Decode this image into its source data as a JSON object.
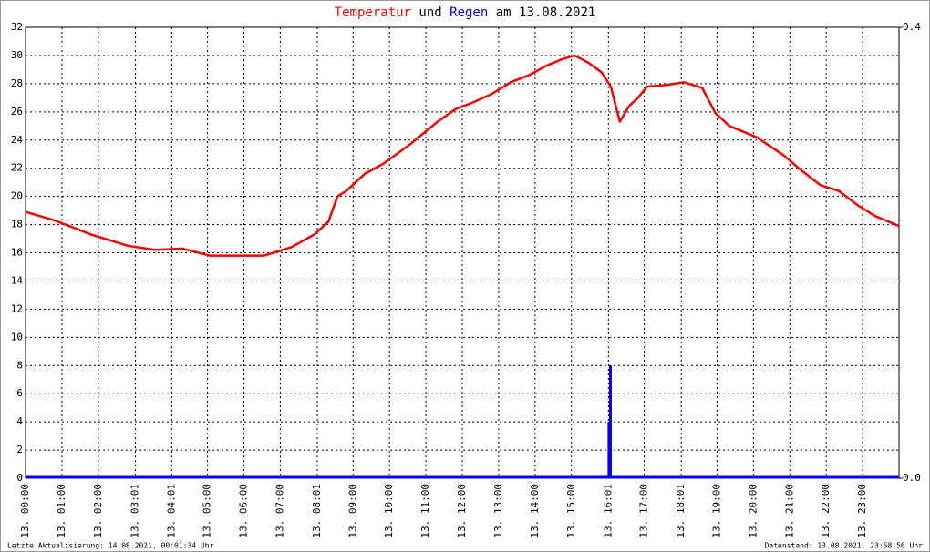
{
  "chart_data": {
    "type": "line",
    "title_connector": "und",
    "title_suffix": "am 13.08.2021",
    "xlim": [
      0,
      24
    ],
    "xticks": [
      {
        "value": 0,
        "label": "13. 00:00"
      },
      {
        "value": 1,
        "label": "13. 01:00"
      },
      {
        "value": 2,
        "label": "13. 02:00"
      },
      {
        "value": 3.017,
        "label": "13. 03:01"
      },
      {
        "value": 4.017,
        "label": "13. 04:01"
      },
      {
        "value": 5,
        "label": "13. 05:00"
      },
      {
        "value": 6,
        "label": "13. 06:00"
      },
      {
        "value": 7,
        "label": "13. 07:00"
      },
      {
        "value": 8.017,
        "label": "13. 08:01"
      },
      {
        "value": 9,
        "label": "13. 09:00"
      },
      {
        "value": 10,
        "label": "13. 10:00"
      },
      {
        "value": 11,
        "label": "13. 11:00"
      },
      {
        "value": 12,
        "label": "13. 12:00"
      },
      {
        "value": 13,
        "label": "13. 13:00"
      },
      {
        "value": 14,
        "label": "13. 14:00"
      },
      {
        "value": 15,
        "label": "13. 15:00"
      },
      {
        "value": 16.017,
        "label": "13. 16:01"
      },
      {
        "value": 17,
        "label": "13. 17:00"
      },
      {
        "value": 18.017,
        "label": "13. 18:01"
      },
      {
        "value": 19,
        "label": "13. 19:00"
      },
      {
        "value": 20,
        "label": "13. 20:00"
      },
      {
        "value": 21,
        "label": "13. 21:00"
      },
      {
        "value": 22,
        "label": "13. 22:00"
      },
      {
        "value": 23,
        "label": "13. 23:00"
      }
    ],
    "ylim": [
      0,
      32
    ],
    "yticks": [
      0,
      2,
      4,
      6,
      8,
      10,
      12,
      14,
      16,
      18,
      20,
      22,
      24,
      26,
      28,
      30,
      32
    ],
    "y2lim": [
      0,
      0.4
    ],
    "y2ticks": [
      {
        "value": 0,
        "label": "0.0"
      },
      {
        "value": 0.4,
        "label": "0.4"
      }
    ],
    "grid": true,
    "series": [
      {
        "name": "Temperatur",
        "color": "#ff0000",
        "x": [
          0,
          0.8,
          1.8,
          2.81,
          3.56,
          4.31,
          5.06,
          5.81,
          6.56,
          7.31,
          7.94,
          8.32,
          8.57,
          8.82,
          9.32,
          9.82,
          10.57,
          11.32,
          11.82,
          12.32,
          12.83,
          13.33,
          13.83,
          14.33,
          14.7,
          15.08,
          15.46,
          15.83,
          16.08,
          16.33,
          16.58,
          16.83,
          17.08,
          17.59,
          18.09,
          18.59,
          18.96,
          19.34,
          20.09,
          20.84,
          21.34,
          21.84,
          22.34,
          22.85,
          23.35,
          24
        ],
        "values": [
          18.9,
          18.3,
          17.3,
          16.5,
          16.2,
          16.3,
          15.8,
          15.8,
          15.8,
          16.4,
          17.3,
          18.2,
          20.0,
          20.4,
          21.6,
          22.3,
          23.7,
          25.3,
          26.2,
          26.7,
          27.3,
          28.1,
          28.6,
          29.3,
          29.7,
          30.0,
          29.5,
          28.8,
          27.8,
          25.3,
          26.4,
          27.0,
          27.8,
          27.9,
          28.1,
          27.7,
          25.9,
          25.0,
          24.2,
          22.9,
          21.8,
          20.8,
          20.4,
          19.4,
          18.6,
          17.9
        ]
      },
      {
        "name": "Regen",
        "color": "#0000ff",
        "axis": "y2",
        "x": [
          16.03,
          16.07
        ],
        "values": [
          0.05,
          0.1
        ]
      }
    ],
    "footer_left": "Letzte Aktualisierung: 14.08.2021, 00:01:34 Uhr",
    "footer_right": "Datenstand: 13.08.2021, 23:58:56 Uhr"
  }
}
